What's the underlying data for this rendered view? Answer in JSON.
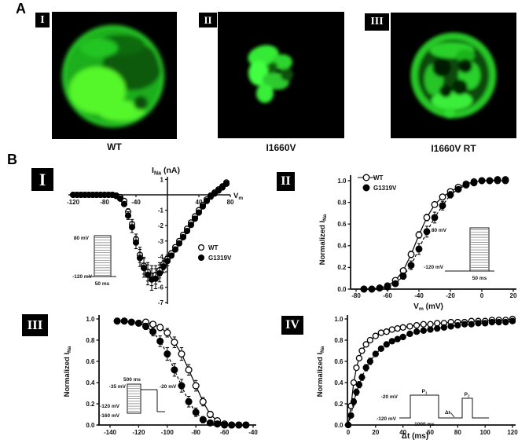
{
  "figure": {
    "panel_a_label": "A",
    "panel_b_label": "B"
  },
  "colors": {
    "fluorescence_green": "#2bd42b",
    "bright_green": "#55f62c",
    "dark_green": "#0a5a0a",
    "panel_background": "#000000",
    "ink": "#111111"
  },
  "panel_a": {
    "items": [
      {
        "numeral": "I",
        "caption": "WT"
      },
      {
        "numeral": "II",
        "caption": "I1660V"
      },
      {
        "numeral": "III",
        "caption": "I1660V RT"
      }
    ]
  },
  "chart_data": [
    {
      "id": "b1",
      "numeral": "I",
      "type": "scatter",
      "title": "I~Na~ (nA)",
      "xlabel": "V~m~",
      "ylabel": "",
      "x_range": [
        -130,
        85
      ],
      "y_range": [
        -7,
        1
      ],
      "x_ticks": [
        -120,
        -80,
        -40,
        40,
        80
      ],
      "x_tick_labels": [
        "-120",
        "-80",
        "-40",
        "40",
        "80"
      ],
      "y_ticks": [
        1,
        -1,
        -2,
        -3,
        -4,
        -5,
        -6,
        -7
      ],
      "y_tick_labels": [
        "1",
        "-1",
        "-2",
        "-3",
        "-4",
        "-5",
        "-6",
        "-7"
      ],
      "x": [
        -120,
        -115,
        -110,
        -105,
        -100,
        -95,
        -90,
        -85,
        -80,
        -75,
        -70,
        -65,
        -60,
        -55,
        -50,
        -45,
        -40,
        -35,
        -30,
        -25,
        -20,
        -15,
        -10,
        -5,
        0,
        5,
        10,
        15,
        20,
        25,
        30,
        35,
        40,
        45,
        50,
        55,
        60,
        65,
        70,
        75
      ],
      "series": [
        {
          "name": "WT",
          "marker": "open",
          "line": "none",
          "y": [
            0,
            0,
            0,
            0,
            0,
            0,
            0,
            0,
            0,
            0,
            0,
            -0.05,
            -0.15,
            -0.4,
            -1.1,
            -1.9,
            -2.9,
            -3.9,
            -4.6,
            -5.0,
            -5.25,
            -5.2,
            -4.9,
            -4.5,
            -4.15,
            -3.8,
            -3.4,
            -3.0,
            -2.6,
            -2.2,
            -1.8,
            -1.4,
            -1.0,
            -0.65,
            -0.3,
            -0.05,
            0.15,
            0.35,
            0.55,
            0.8
          ],
          "err": [
            0,
            0,
            0,
            0,
            0,
            0,
            0,
            0,
            0,
            0,
            0,
            0,
            0,
            0,
            0.2,
            0.3,
            0.35,
            0.5,
            0.55,
            0.6,
            0.65,
            0.6,
            0.5,
            0.35,
            0.25,
            0,
            0,
            0,
            0,
            0,
            0,
            0,
            0,
            0,
            0,
            0,
            0,
            0,
            0,
            0
          ]
        },
        {
          "name": "G1319V",
          "marker": "filled",
          "line": "none",
          "y": [
            0,
            0,
            0,
            0,
            0,
            0,
            0,
            0,
            0,
            0,
            0,
            -0.08,
            -0.25,
            -0.6,
            -1.35,
            -2.1,
            -3.1,
            -4.1,
            -4.75,
            -5.2,
            -5.5,
            -5.45,
            -5.1,
            -4.65,
            -4.3,
            -3.95,
            -3.55,
            -3.15,
            -2.75,
            -2.35,
            -1.95,
            -1.55,
            -1.15,
            -0.75,
            -0.4,
            -0.12,
            0.08,
            0.28,
            0.48,
            0.72
          ],
          "err": [
            0,
            0,
            0,
            0,
            0,
            0,
            0,
            0,
            0,
            0,
            0,
            0,
            0,
            0,
            0.25,
            0.35,
            0.4,
            0.55,
            0.6,
            0.65,
            0.7,
            0.65,
            0.55,
            0.4,
            0.3,
            0,
            0,
            0,
            0,
            0,
            0,
            0,
            0,
            0,
            0,
            0,
            0,
            0,
            0,
            0
          ]
        }
      ],
      "inset": {
        "type": "steps",
        "top": "80 mV",
        "bottom": "-120 mV",
        "time": "50 ms"
      }
    },
    {
      "id": "b2",
      "numeral": "II",
      "type": "scatter",
      "title": "",
      "xlabel": "V~m~ (mV)",
      "ylabel": "Normalized I~Na~",
      "x_range": [
        -80,
        20
      ],
      "y_range": [
        0,
        1
      ],
      "x_ticks": [
        -80,
        -60,
        -40,
        -20,
        0,
        20
      ],
      "x_tick_labels": [
        "-80",
        "-60",
        "-40",
        "-20",
        "0",
        "20"
      ],
      "y_ticks": [
        0,
        0.2,
        0.4,
        0.6,
        0.8,
        1.0
      ],
      "y_tick_labels": [
        "0.0",
        "0.2",
        "0.4",
        "0.6",
        "0.8",
        "1.0"
      ],
      "x": [
        -75,
        -70,
        -65,
        -60,
        -55,
        -50,
        -45,
        -40,
        -35,
        -30,
        -25,
        -20,
        -15,
        -10,
        -5,
        0,
        5,
        10,
        15
      ],
      "series": [
        {
          "name": "WT",
          "marker": "open",
          "line": "solid",
          "y": [
            0,
            0,
            0.01,
            0.03,
            0.08,
            0.17,
            0.32,
            0.5,
            0.66,
            0.78,
            0.85,
            0.9,
            0.94,
            0.97,
            0.99,
            1.0,
            1.0,
            1.0,
            1.0
          ],
          "err": [
            0,
            0,
            0,
            0,
            0.02,
            0.02,
            0.03,
            0.03,
            0.03,
            0.02,
            0.02,
            0,
            0,
            0,
            0,
            0,
            0,
            0,
            0
          ]
        },
        {
          "name": "G1319V",
          "marker": "filled",
          "line": "dashed",
          "y": [
            0,
            0,
            0.01,
            0.02,
            0.05,
            0.12,
            0.22,
            0.37,
            0.53,
            0.66,
            0.77,
            0.87,
            0.92,
            0.96,
            0.98,
            1.0,
            1.0,
            1.01,
            1.01
          ],
          "err": [
            0,
            0,
            0,
            0,
            0.02,
            0.03,
            0.04,
            0.05,
            0.05,
            0.05,
            0.04,
            0.03,
            0,
            0,
            0,
            0,
            0,
            0,
            0
          ]
        }
      ],
      "inset": {
        "type": "steps",
        "top": "80 mV",
        "bottom": "-120 mV",
        "time": "50 ms"
      }
    },
    {
      "id": "b3",
      "numeral": "III",
      "type": "scatter",
      "title": "",
      "xlabel": "",
      "ylabel": "Normalized I~Na~",
      "x_range": [
        -140,
        -40
      ],
      "y_range": [
        0,
        1
      ],
      "x_ticks": [
        -140,
        -120,
        -100,
        -80,
        -60,
        -40
      ],
      "x_tick_labels": [
        "-140",
        "-120",
        "-100",
        "-80",
        "-60",
        "-40"
      ],
      "y_ticks": [
        0,
        0.2,
        0.4,
        0.6,
        0.8,
        1.0
      ],
      "y_tick_labels": [
        "0.0",
        "0.2",
        "0.4",
        "0.6",
        "0.8",
        "1.0"
      ],
      "series": [
        {
          "name": "WT",
          "marker": "open",
          "line": "solid",
          "x": [
            -115,
            -110,
            -105,
            -100,
            -95,
            -90,
            -85,
            -80,
            -75,
            -70,
            -65,
            -60,
            -55,
            -50,
            -45
          ],
          "y": [
            0.97,
            0.95,
            0.92,
            0.87,
            0.78,
            0.67,
            0.52,
            0.37,
            0.22,
            0.1,
            0.04,
            0.01,
            0,
            0,
            0
          ],
          "err": [
            0,
            0,
            0.03,
            0.04,
            0.05,
            0.06,
            0.05,
            0.05,
            0.04,
            0.03,
            0,
            0,
            0,
            0,
            0
          ]
        },
        {
          "name": "G1319V",
          "marker": "filled",
          "line": "dashed",
          "x": [
            -135,
            -130,
            -125,
            -120,
            -115,
            -110,
            -105,
            -100,
            -95,
            -90,
            -85,
            -80,
            -75,
            -70,
            -65,
            -60,
            -55,
            -50,
            -45
          ],
          "y": [
            0.98,
            0.98,
            0.97,
            0.96,
            0.93,
            0.88,
            0.79,
            0.67,
            0.52,
            0.37,
            0.22,
            0.12,
            0.05,
            0.02,
            0.01,
            0,
            0,
            0,
            0
          ],
          "err": [
            0,
            0,
            0,
            0,
            0.03,
            0.04,
            0.05,
            0.06,
            0.06,
            0.06,
            0.05,
            0.04,
            0.03,
            0,
            0,
            0,
            0,
            0,
            0
          ]
        }
      ],
      "inset": {
        "type": "inact",
        "top": "-35 mV",
        "duration": "500 ms",
        "test": "-20 mV",
        "mid": "-120 mV",
        "bottom": "-160 mV"
      }
    },
    {
      "id": "b4",
      "numeral": "IV",
      "type": "scatter",
      "title": "",
      "xlabel": "Δt (ms)",
      "ylabel": "Normalized I~Na~",
      "x_range": [
        0,
        120
      ],
      "y_range": [
        0,
        1
      ],
      "x_ticks": [
        0,
        20,
        40,
        60,
        80,
        100,
        120
      ],
      "x_tick_labels": [
        "0",
        "20",
        "40",
        "60",
        "80",
        "100",
        "120"
      ],
      "y_ticks": [
        0,
        0.2,
        0.4,
        0.6,
        0.8,
        1.0
      ],
      "y_tick_labels": [
        "0.0",
        "0.2",
        "0.4",
        "0.6",
        "0.8",
        "1.0"
      ],
      "x": [
        0,
        2,
        4,
        6,
        8,
        10,
        13,
        16,
        20,
        24,
        28,
        32,
        36,
        40,
        45,
        50,
        55,
        60,
        65,
        70,
        75,
        80,
        85,
        90,
        95,
        100,
        105,
        110,
        115,
        120
      ],
      "series": [
        {
          "name": "WT",
          "marker": "open",
          "line": "solid",
          "y": [
            0,
            0.18,
            0.4,
            0.54,
            0.63,
            0.7,
            0.76,
            0.8,
            0.84,
            0.87,
            0.88,
            0.9,
            0.91,
            0.92,
            0.93,
            0.94,
            0.95,
            0.95,
            0.96,
            0.96,
            0.97,
            0.97,
            0.97,
            0.98,
            0.98,
            0.98,
            0.99,
            0.99,
            0.99,
            1.0
          ],
          "err": [
            0,
            0.02,
            0.02,
            0.02,
            0.02,
            0.02,
            0.02,
            0.02,
            0,
            0,
            0,
            0,
            0,
            0,
            0,
            0,
            0,
            0,
            0,
            0,
            0,
            0,
            0,
            0,
            0,
            0,
            0,
            0,
            0,
            0
          ]
        },
        {
          "name": "G1319V",
          "marker": "filled",
          "line": "dashed",
          "y": [
            0,
            0.09,
            0.22,
            0.31,
            0.38,
            0.45,
            0.54,
            0.6,
            0.67,
            0.72,
            0.76,
            0.79,
            0.81,
            0.83,
            0.86,
            0.88,
            0.89,
            0.9,
            0.91,
            0.92,
            0.93,
            0.94,
            0.95,
            0.95,
            0.96,
            0.96,
            0.97,
            0.97,
            0.97,
            0.98
          ],
          "err": [
            0,
            0.02,
            0.03,
            0.03,
            0.03,
            0.03,
            0.03,
            0.03,
            0.02,
            0.02,
            0,
            0,
            0,
            0,
            0,
            0,
            0,
            0,
            0,
            0,
            0,
            0,
            0,
            0,
            0,
            0,
            0,
            0,
            0,
            0
          ]
        }
      ],
      "inset": {
        "type": "pulse",
        "top": "-20 mV",
        "bottom": "-120 mV",
        "p1": "P~1~",
        "p2": "P~2~",
        "duration": "1000 ms",
        "delta": "Δt"
      }
    }
  ]
}
